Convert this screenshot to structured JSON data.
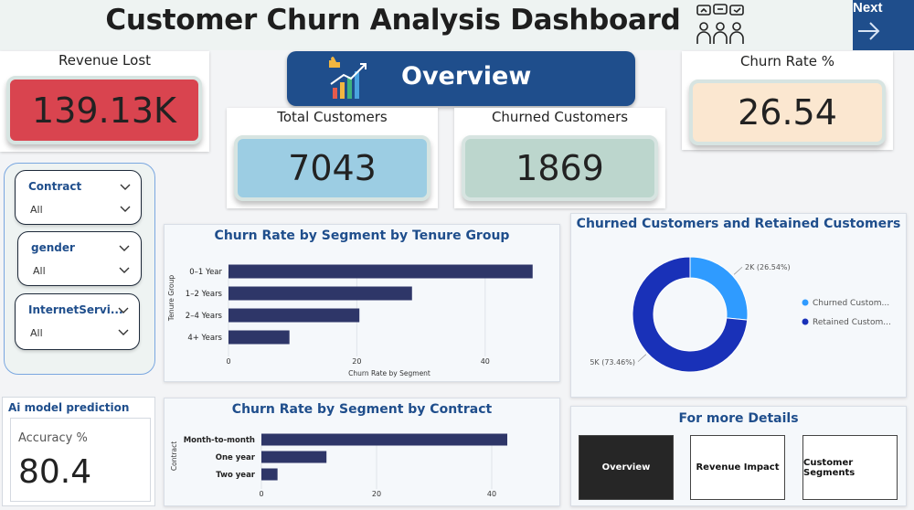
{
  "header": {
    "title": "Customer Churn Analysis Dashboard",
    "next_label": "Next"
  },
  "overview": {
    "label": "Overview"
  },
  "kpis": {
    "revenue_lost": {
      "title": "Revenue Lost",
      "value": "139.13K",
      "color": "#d9444f"
    },
    "total_customers": {
      "title": "Total Customers",
      "value": "7043",
      "color": "#9ccde3"
    },
    "churned_customers": {
      "title": "Churned Customers",
      "value": "1869",
      "color": "#bcd6cd"
    },
    "churn_rate": {
      "title": "Churn Rate %",
      "value": "26.54",
      "color": "#fbe7d0"
    }
  },
  "filters": [
    {
      "title": "Contract",
      "value": "All"
    },
    {
      "title": "gender",
      "value": "All"
    },
    {
      "title": "InternetServi...",
      "value": "All"
    }
  ],
  "ai": {
    "title": "Ai model prediction",
    "label": "Accuracy %",
    "value": "80.4"
  },
  "chart_tenure": {
    "title": "Churn Rate by Segment by Tenure Group",
    "chart_data": {
      "type": "bar",
      "orientation": "horizontal",
      "categories": [
        "0–1 Year",
        "1–2 Years",
        "2–4 Years",
        "4+ Years"
      ],
      "values": [
        47.4,
        28.6,
        20.4,
        9.5
      ],
      "xlabel": "Churn Rate by Segment",
      "ylabel": "Tenure Group",
      "xlim": [
        0,
        50
      ],
      "xticks": [
        "0",
        "20",
        "40"
      ],
      "color": "#2e3668"
    }
  },
  "chart_contract": {
    "title": "Churn Rate by Segment by Contract",
    "chart_data": {
      "type": "bar",
      "orientation": "horizontal",
      "categories": [
        "Month-to-month",
        "One year",
        "Two year"
      ],
      "values": [
        42.7,
        11.3,
        2.8
      ],
      "xlabel": "",
      "ylabel": "Contract",
      "xlim": [
        0,
        50
      ],
      "xticks": [
        "0",
        "20",
        "40"
      ],
      "color": "#2e3668"
    }
  },
  "chart_donut": {
    "title": "Churned Customers and Retained Customers",
    "chart_data": {
      "type": "pie",
      "donut": true,
      "series": [
        {
          "name": "Churned Custom...",
          "value": 26.54,
          "label": "2K (26.54%)",
          "color": "#2f9bff"
        },
        {
          "name": "Retained Custom...",
          "value": 73.46,
          "label": "5K (73.46%)",
          "color": "#1931b8"
        }
      ],
      "legend": "right"
    }
  },
  "details": {
    "title": "For more Details",
    "buttons": [
      "Overview",
      "Revenue Impact",
      "Customer Segments"
    ]
  }
}
